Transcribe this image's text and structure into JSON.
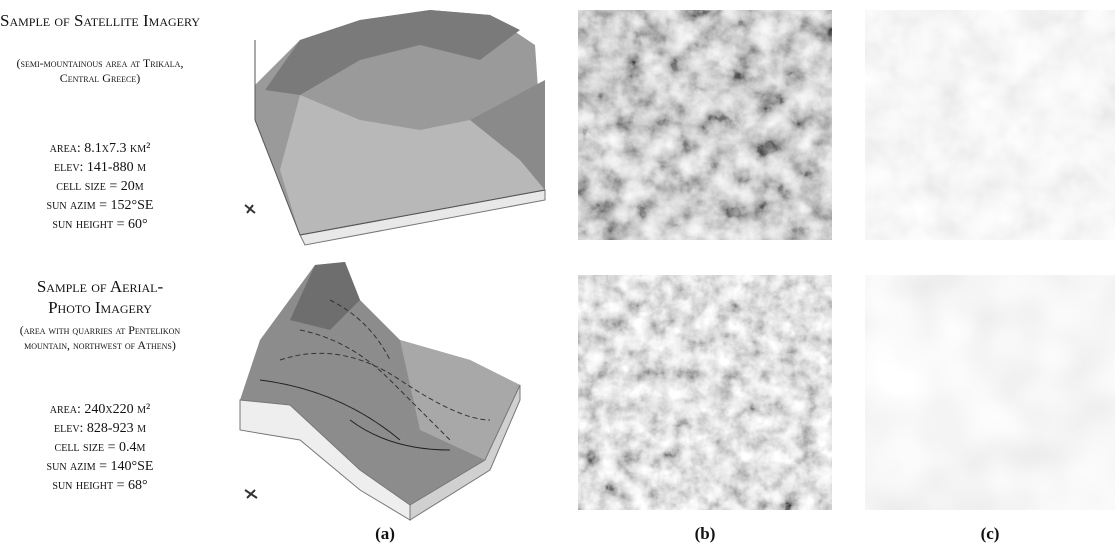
{
  "panels": [
    {
      "title": "Sample of Satellite Imagery",
      "description": "(semi-mountainous area at Trikala, Central Greece)",
      "details": [
        "area: 8.1x7.3 km²",
        "elev: 141-880 m",
        "cell size = 20m",
        "sun azim = 152°SE",
        "sun height = 60°"
      ]
    },
    {
      "title": "Sample of Aerial-Photo Imagery",
      "description": "(area with quarries at Pentelikon mountain, northwest of Athens)",
      "details": [
        "area: 240x220 m²",
        "elev: 828-923 m",
        "cell size = 0.4m",
        "sun azim = 140°SE",
        "sun height = 68°"
      ]
    }
  ],
  "captions": [
    "(a)",
    "(b)",
    "(c)"
  ]
}
